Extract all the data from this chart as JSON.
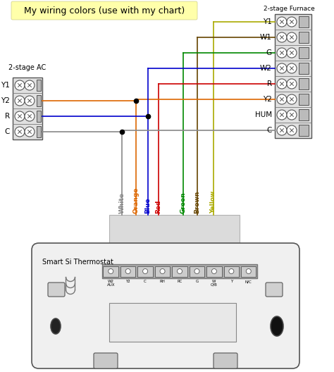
{
  "title": "My wiring colors (use with my chart)",
  "title_bg": "#ffffaa",
  "title_fontsize": 9,
  "bg_color": "#ffffff",
  "furnace_label": "2-stage Furnace",
  "ac_label": "2-stage AC",
  "thermostat_label": "Smart Si Thermostat",
  "furnace_terminals": [
    "Y1",
    "W1",
    "G",
    "W2",
    "R",
    "Y2",
    "HUM",
    "C"
  ],
  "ac_terminals": [
    "Y1",
    "Y2",
    "R",
    "C"
  ],
  "thermostat_terminals": [
    "W2\nAUX",
    "Y2",
    "C",
    "RH",
    "RC",
    "G",
    "W\nO/B",
    "Y",
    "N/C"
  ],
  "wire_colors": [
    "White",
    "Orange",
    "Blue",
    "Red",
    "Green",
    "Brown",
    "Yellow"
  ],
  "wire_hex": [
    "#888888",
    "#dd6600",
    "#0000cc",
    "#cc0000",
    "#008800",
    "#664400",
    "#aaaa00"
  ],
  "wire_label_colors": [
    "#888888",
    "#dd6600",
    "#0000cc",
    "#cc0000",
    "#008800",
    "#664400",
    "#aaaa00"
  ]
}
